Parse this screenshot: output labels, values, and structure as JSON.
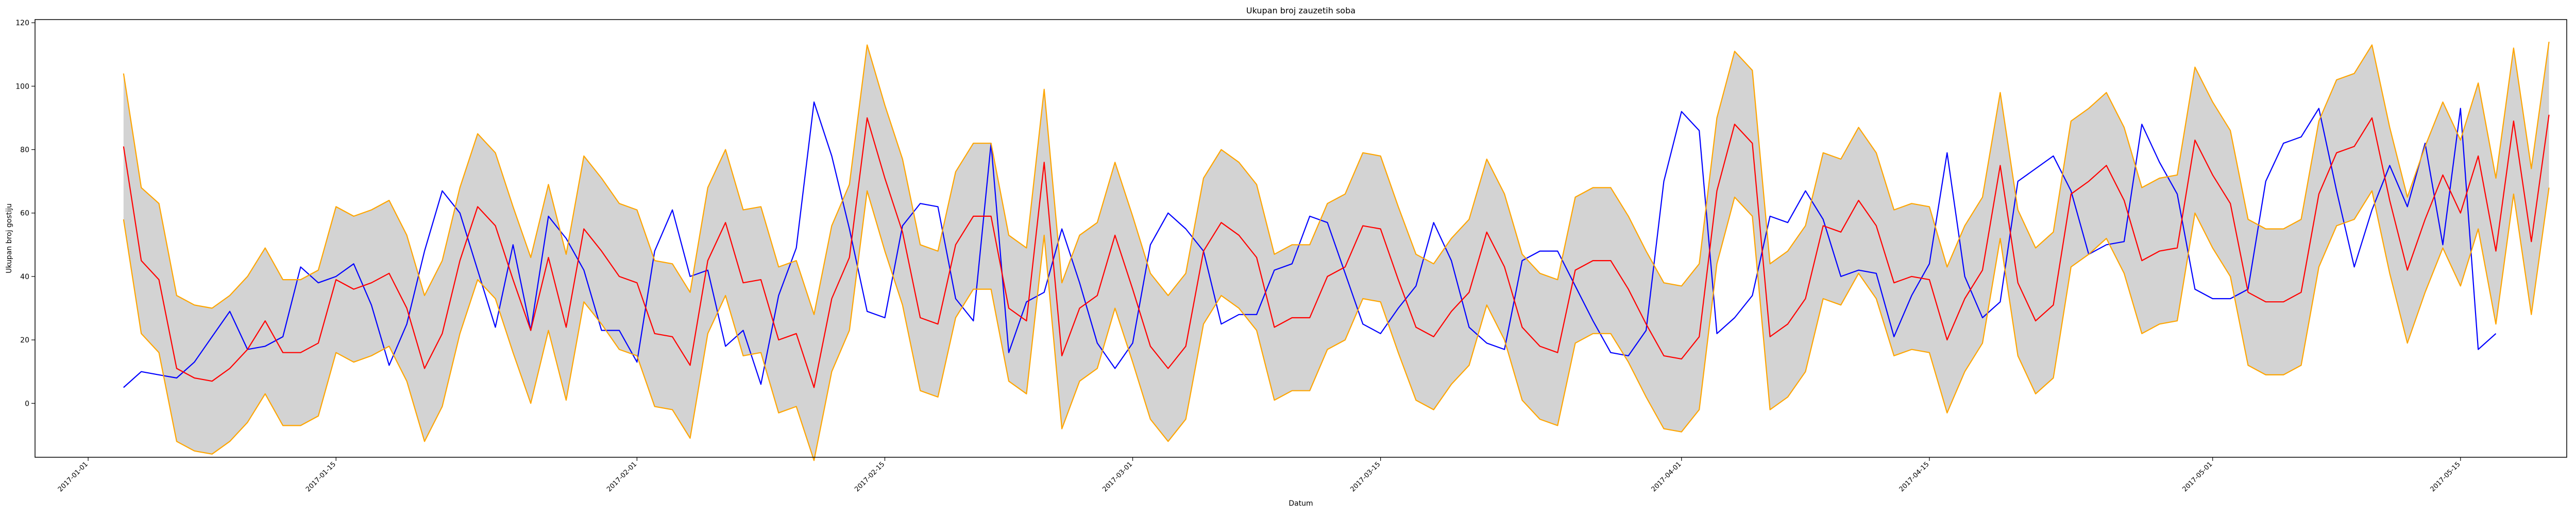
{
  "chart_data": {
    "type": "line",
    "title": "Ukupan broj zauzetih soba",
    "xlabel": "Datum",
    "ylabel": "Ukupan broj gostiju",
    "x_type": "date",
    "x_range": [
      "2016-12-29",
      "2017-05-21"
    ],
    "ylim": [
      -17,
      121
    ],
    "grid": false,
    "x_ticks": [
      "2017-01-01",
      "2017-01-15",
      "2017-02-01",
      "2017-02-15",
      "2017-03-01",
      "2017-03-15",
      "2017-04-01",
      "2017-04-15",
      "2017-05-01",
      "2017-05-15"
    ],
    "y_ticks": [
      0,
      20,
      40,
      60,
      80,
      100,
      120
    ],
    "x_start": "2017-01-03",
    "x_step_days": 1,
    "series": [
      {
        "color": "#0000ff",
        "values": [
          5,
          10,
          9,
          8,
          13,
          21,
          29,
          17,
          18,
          21,
          43,
          38,
          40,
          44,
          31,
          12,
          25,
          48,
          67,
          60,
          42,
          24,
          50,
          23,
          59,
          52,
          42,
          23,
          23,
          13,
          48,
          61,
          40,
          42,
          18,
          23,
          6,
          34,
          49,
          95,
          78,
          55,
          29,
          27,
          56,
          63,
          62,
          33,
          26,
          82,
          16,
          32,
          35,
          55,
          38,
          19,
          11,
          19,
          50,
          60,
          55,
          48,
          25,
          28,
          28,
          42,
          44,
          59,
          57,
          41,
          25,
          22,
          30,
          37,
          57,
          45,
          24,
          19,
          17,
          45,
          48,
          48,
          37,
          26,
          16,
          15,
          23,
          70,
          92,
          86,
          22,
          27,
          34,
          59,
          57,
          67,
          58,
          40,
          42,
          41,
          21,
          34,
          44,
          79,
          40,
          27,
          32,
          70,
          74,
          78,
          67,
          47,
          50,
          51,
          88,
          76,
          66,
          36,
          33,
          33,
          36,
          70,
          82,
          84,
          93,
          67,
          43,
          61,
          75,
          62,
          82,
          50,
          93,
          17,
          22
        ]
      },
      {
        "color": "#ff0000",
        "values": [
          81,
          45,
          39,
          11,
          8,
          7,
          11,
          17,
          26,
          16,
          16,
          19,
          39,
          36,
          38,
          41,
          30,
          11,
          22,
          45,
          62,
          56,
          39,
          23,
          46,
          24,
          55,
          48,
          40,
          38,
          22,
          21,
          12,
          45,
          57,
          38,
          39,
          20,
          22,
          5,
          33,
          46,
          90,
          71,
          54,
          27,
          25,
          50,
          59,
          59,
          30,
          26,
          76,
          15,
          30,
          34,
          53,
          36,
          18,
          11,
          18,
          48,
          57,
          53,
          46,
          24,
          27,
          27,
          40,
          43,
          56,
          55,
          39,
          24,
          21,
          29,
          35,
          54,
          43,
          24,
          18,
          16,
          42,
          45,
          45,
          36,
          25,
          15,
          14,
          21,
          67,
          88,
          82,
          21,
          25,
          33,
          56,
          54,
          64,
          56,
          38,
          40,
          39,
          20,
          33,
          42,
          75,
          38,
          26,
          31,
          66,
          70,
          75,
          64,
          45,
          48,
          49,
          83,
          72,
          63,
          35,
          32,
          32,
          35,
          66,
          79,
          81,
          90,
          64,
          42,
          58,
          72,
          60,
          78,
          48,
          89,
          51,
          91
        ]
      },
      {
        "color": "#ffa500",
        "name_band": "upper",
        "values": [
          104,
          68,
          63,
          34,
          31,
          30,
          34,
          40,
          49,
          39,
          39,
          42,
          62,
          59,
          61,
          64,
          53,
          34,
          45,
          68,
          85,
          79,
          62,
          46,
          69,
          47,
          78,
          71,
          63,
          61,
          45,
          44,
          35,
          68,
          80,
          61,
          62,
          43,
          45,
          28,
          56,
          69,
          113,
          94,
          77,
          50,
          48,
          73,
          82,
          82,
          53,
          49,
          99,
          38,
          53,
          57,
          76,
          59,
          41,
          34,
          41,
          71,
          80,
          76,
          69,
          47,
          50,
          50,
          63,
          66,
          79,
          78,
          62,
          47,
          44,
          52,
          58,
          77,
          66,
          47,
          41,
          39,
          65,
          68,
          68,
          59,
          48,
          38,
          37,
          44,
          90,
          111,
          105,
          44,
          48,
          56,
          79,
          77,
          87,
          79,
          61,
          63,
          62,
          43,
          56,
          65,
          98,
          61,
          49,
          54,
          89,
          93,
          98,
          87,
          68,
          71,
          72,
          106,
          95,
          86,
          58,
          55,
          55,
          58,
          89,
          102,
          104,
          113,
          87,
          65,
          81,
          95,
          83,
          101,
          71,
          112,
          74,
          114
        ]
      },
      {
        "color": "#ffa500",
        "name_band": "lower",
        "values": [
          58,
          22,
          16,
          -12,
          -15,
          -16,
          -12,
          -6,
          3,
          -7,
          -7,
          -4,
          16,
          13,
          15,
          18,
          7,
          -12,
          -1,
          22,
          39,
          33,
          16,
          0,
          23,
          1,
          32,
          25,
          17,
          15,
          -1,
          -2,
          -11,
          22,
          34,
          15,
          16,
          -3,
          -1,
          -18,
          10,
          23,
          67,
          48,
          31,
          4,
          2,
          27,
          36,
          36,
          7,
          3,
          53,
          -8,
          7,
          11,
          30,
          13,
          -5,
          -12,
          -5,
          25,
          34,
          30,
          23,
          1,
          4,
          4,
          17,
          20,
          33,
          32,
          16,
          1,
          -2,
          6,
          12,
          31,
          20,
          1,
          -5,
          -7,
          19,
          22,
          22,
          13,
          2,
          -8,
          -9,
          -2,
          44,
          65,
          59,
          -2,
          2,
          10,
          33,
          31,
          41,
          33,
          15,
          17,
          16,
          -3,
          10,
          19,
          52,
          15,
          3,
          8,
          43,
          47,
          52,
          41,
          22,
          25,
          26,
          60,
          49,
          40,
          12,
          9,
          9,
          12,
          43,
          56,
          58,
          67,
          41,
          19,
          35,
          49,
          37,
          55,
          25,
          66,
          28,
          68
        ]
      }
    ]
  }
}
